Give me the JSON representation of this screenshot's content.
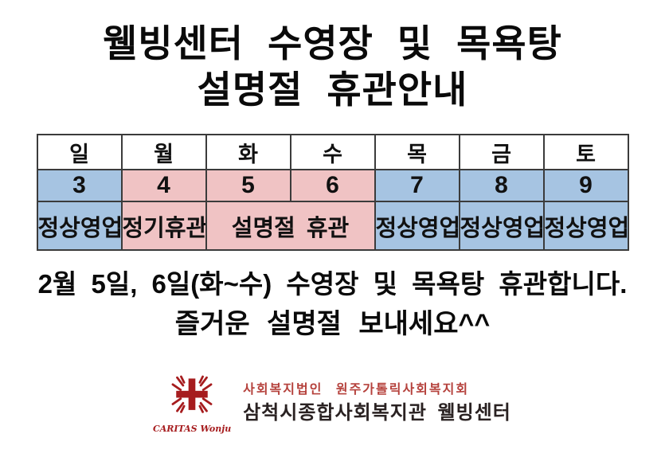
{
  "title": {
    "line1": "웰빙센터 수영장 및 목욕탕",
    "line2": "설명절 휴관안내"
  },
  "calendar": {
    "day_headers": [
      "일",
      "월",
      "화",
      "수",
      "목",
      "금",
      "토"
    ],
    "dates": [
      {
        "value": "3",
        "state": "open"
      },
      {
        "value": "4",
        "state": "closed"
      },
      {
        "value": "5",
        "state": "closed"
      },
      {
        "value": "6",
        "state": "closed"
      },
      {
        "value": "7",
        "state": "open"
      },
      {
        "value": "8",
        "state": "open"
      },
      {
        "value": "9",
        "state": "open"
      }
    ],
    "statuses": [
      {
        "label": "정상영업",
        "state": "open",
        "span": 1
      },
      {
        "label": "정기휴관",
        "state": "closed",
        "span": 1
      },
      {
        "label": "설명절 휴관",
        "state": "closed",
        "span": 2
      },
      {
        "label": "정상영업",
        "state": "open",
        "span": 1
      },
      {
        "label": "정상영업",
        "state": "open",
        "span": 1
      },
      {
        "label": "정상영업",
        "state": "open",
        "span": 1
      }
    ]
  },
  "notice": {
    "line1": "2월 5일, 6일(화~수) 수영장 및 목욕탕 휴관합니다.",
    "line2": "즐거운 설명절 보내세요^^"
  },
  "footer": {
    "logo_caption": "CARITAS Wonju",
    "org_line1": "사회복지법인 원주가톨릭사회복지회",
    "org_line2": "삼척시종합사회복지관 웰빙센터"
  },
  "colors": {
    "open_bg": "#a6c4e2",
    "closed_bg": "#f0c3c4",
    "table_border": "#3b3b3b",
    "logo_red": "#a61c1e",
    "footer_text_red": "#b5413c"
  }
}
